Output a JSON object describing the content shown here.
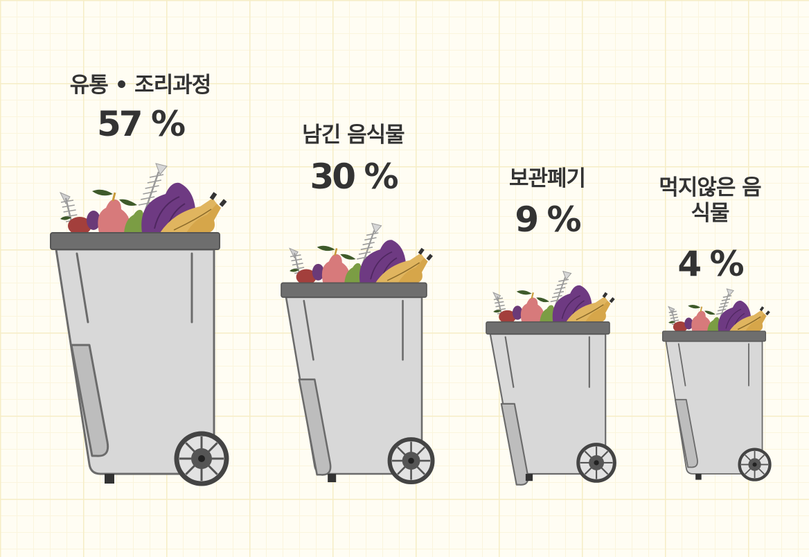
{
  "chart_data": {
    "type": "bar",
    "title": "",
    "xlabel": "",
    "ylabel": "",
    "categories": [
      "유통 • 조리과정",
      "남긴 음식물",
      "보관폐기",
      "먹지않은 음식물"
    ],
    "values": [
      57,
      30,
      9,
      4
    ],
    "value_labels": [
      "57 %",
      "30 %",
      "9 %",
      "4 %"
    ],
    "unit": "%",
    "grid": true,
    "legend": "none",
    "colors": {
      "bin_body": "#d8d8d8",
      "bin_lid": "#6e6e6e",
      "bin_outline": "#6b6b6b",
      "grid_line": "#f6edc6",
      "text": "#333333"
    }
  }
}
